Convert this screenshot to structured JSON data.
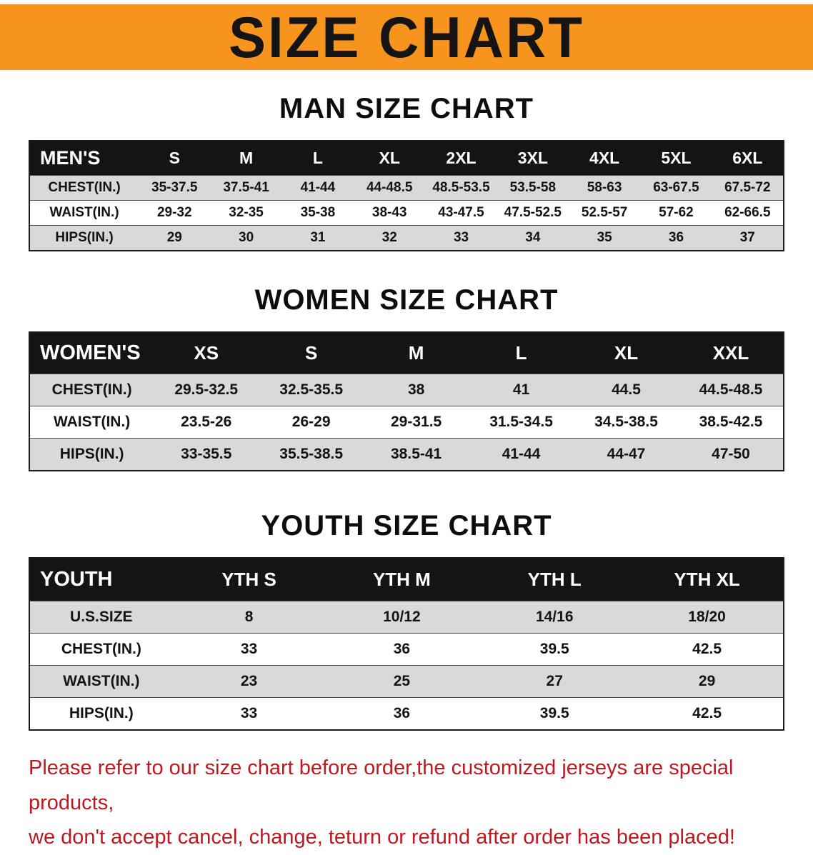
{
  "banner": {
    "title": "SIZE CHART"
  },
  "colors": {
    "banner_bg": "#f7941d",
    "banner_text": "#141414",
    "table_header_bg": "#141414",
    "table_header_text": "#ffffff",
    "table_row_alt_bg": "#d9d9d9",
    "disclaimer_text": "#c1181f"
  },
  "chart_data": [
    {
      "type": "table",
      "title": "MAN SIZE CHART",
      "header": [
        "MEN'S",
        "S",
        "M",
        "L",
        "XL",
        "2XL",
        "3XL",
        "4XL",
        "5XL",
        "6XL"
      ],
      "rows": [
        [
          "CHEST(IN.)",
          "35-37.5",
          "37.5-41",
          "41-44",
          "44-48.5",
          "48.5-53.5",
          "53.5-58",
          "58-63",
          "63-67.5",
          "67.5-72"
        ],
        [
          "WAIST(IN.)",
          "29-32",
          "32-35",
          "35-38",
          "38-43",
          "43-47.5",
          "47.5-52.5",
          "52.5-57",
          "57-62",
          "62-66.5"
        ],
        [
          "HIPS(IN.)",
          "29",
          "30",
          "31",
          "32",
          "33",
          "34",
          "35",
          "36",
          "37"
        ]
      ]
    },
    {
      "type": "table",
      "title": "WOMEN SIZE CHART",
      "header": [
        "WOMEN'S",
        "XS",
        "S",
        "M",
        "L",
        "XL",
        "XXL"
      ],
      "rows": [
        [
          "CHEST(IN.)",
          "29.5-32.5",
          "32.5-35.5",
          "38",
          "41",
          "44.5",
          "44.5-48.5"
        ],
        [
          "WAIST(IN.)",
          "23.5-26",
          "26-29",
          "29-31.5",
          "31.5-34.5",
          "34.5-38.5",
          "38.5-42.5"
        ],
        [
          "HIPS(IN.)",
          "33-35.5",
          "35.5-38.5",
          "38.5-41",
          "41-44",
          "44-47",
          "47-50"
        ]
      ]
    },
    {
      "type": "table",
      "title": "YOUTH SIZE CHART",
      "header": [
        "YOUTH",
        "YTH S",
        "YTH M",
        "YTH L",
        "YTH XL"
      ],
      "rows": [
        [
          "U.S.SIZE",
          "8",
          "10/12",
          "14/16",
          "18/20"
        ],
        [
          "CHEST(IN.)",
          "33",
          "36",
          "39.5",
          "42.5"
        ],
        [
          "WAIST(IN.)",
          "23",
          "25",
          "27",
          "29"
        ],
        [
          "HIPS(IN.)",
          "33",
          "36",
          "39.5",
          "42.5"
        ]
      ]
    }
  ],
  "disclaimer": {
    "lines": [
      "Please refer to our size chart before order,the customized jerseys are special products,",
      "we don't accept cancel, change, teturn or refund after order has been placed!"
    ]
  }
}
